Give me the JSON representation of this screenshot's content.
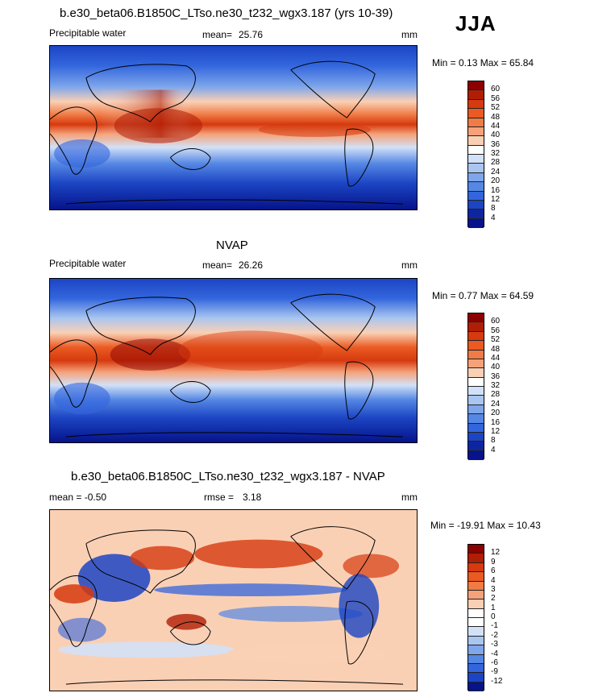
{
  "season": "JJA",
  "panels": [
    {
      "id": "model",
      "title": "b.e30_beta06.B1850C_LTso.ne30_t232_wgx3.187 (yrs 10-39)",
      "left_label": "Precipitable water",
      "stat_label": "mean=",
      "stat_value": "25.76",
      "units": "mm",
      "minmax": "Min =  0.13 Max =  65.84",
      "levels": [
        "60",
        "56",
        "52",
        "48",
        "44",
        "40",
        "36",
        "32",
        "28",
        "24",
        "20",
        "16",
        "12",
        "8",
        "4"
      ],
      "colors": [
        "#8b0000",
        "#b01e05",
        "#d63a0f",
        "#ea5a22",
        "#f07b45",
        "#f5a27a",
        "#fad0b5",
        "#ffffff",
        "#d2e1f7",
        "#a9c6f0",
        "#7ea6eb",
        "#5587e4",
        "#3366dd",
        "#1c45c4",
        "#0d26a0",
        "#06138a"
      ]
    },
    {
      "id": "obs",
      "title": "NVAP",
      "left_label": "Precipitable water",
      "stat_label": "mean=",
      "stat_value": "26.26",
      "units": "mm",
      "minmax": "Min =  0.77 Max =  64.59",
      "levels": [
        "60",
        "56",
        "52",
        "48",
        "44",
        "40",
        "36",
        "32",
        "28",
        "24",
        "20",
        "16",
        "12",
        "8",
        "4"
      ],
      "colors": [
        "#8b0000",
        "#b01e05",
        "#d63a0f",
        "#ea5a22",
        "#f07b45",
        "#f5a27a",
        "#fad0b5",
        "#ffffff",
        "#d2e1f7",
        "#a9c6f0",
        "#7ea6eb",
        "#5587e4",
        "#3366dd",
        "#1c45c4",
        "#0d26a0",
        "#06138a"
      ]
    },
    {
      "id": "diff",
      "title": "b.e30_beta06.B1850C_LTso.ne30_t232_wgx3.187 - NVAP",
      "left_label": "mean =  -0.50",
      "stat_label": "rmse =",
      "stat_value": "3.18",
      "units": "mm",
      "minmax": "Min = -19.91 Max =  10.43",
      "levels": [
        "12",
        "9",
        "6",
        "4",
        "3",
        "2",
        "1",
        "0",
        "-1",
        "-2",
        "-3",
        "-4",
        "-6",
        "-9",
        "-12"
      ],
      "colors": [
        "#8b0000",
        "#b01e05",
        "#d63a0f",
        "#ea5a22",
        "#f07b45",
        "#f5a27a",
        "#fad0b5",
        "#ffffff",
        "#ffffff",
        "#d2e1f7",
        "#a9c6f0",
        "#7ea6eb",
        "#5587e4",
        "#3366dd",
        "#1c45c4",
        "#06138a"
      ]
    }
  ]
}
